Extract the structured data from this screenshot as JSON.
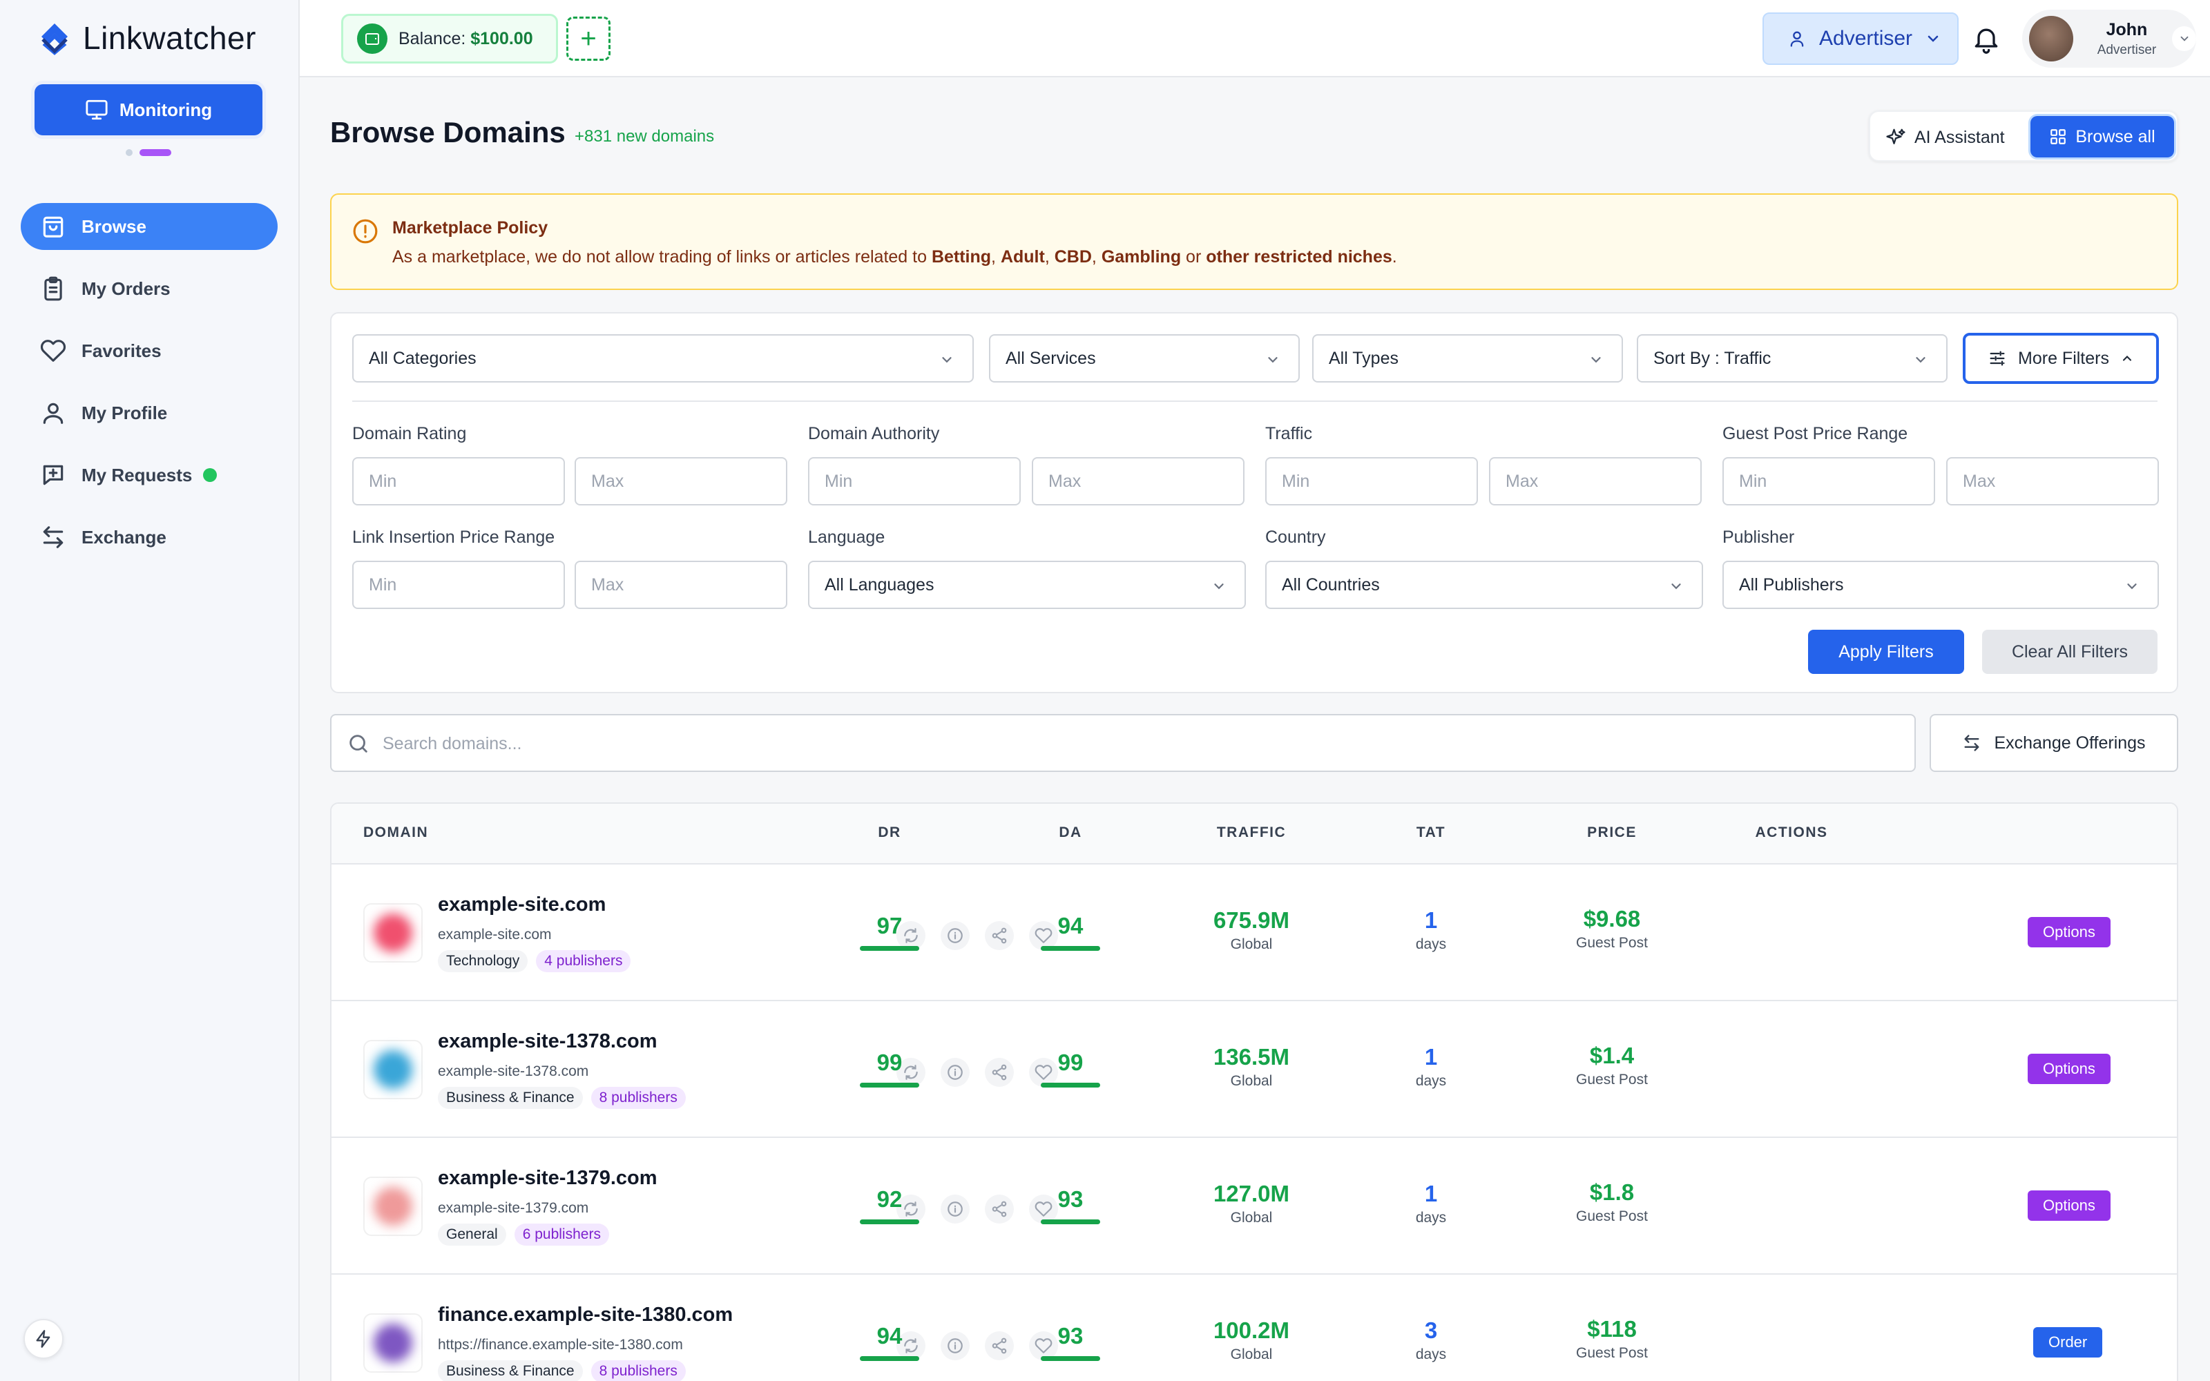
{
  "app": {
    "name": "Linkwatcher"
  },
  "sidebar": {
    "monitoring_label": "Monitoring",
    "items": [
      {
        "label": "Browse",
        "icon": "shopping-bag-icon"
      },
      {
        "label": "My Orders",
        "icon": "clipboard-icon"
      },
      {
        "label": "Favorites",
        "icon": "heart-icon"
      },
      {
        "label": "My Profile",
        "icon": "user-icon"
      },
      {
        "label": "My Requests",
        "icon": "message-plus-icon"
      },
      {
        "label": "Exchange",
        "icon": "arrows-exchange-icon"
      }
    ]
  },
  "topbar": {
    "balance_label": "Balance:",
    "balance_value": "$100.00",
    "add_symbol": "+",
    "role": "Advertiser",
    "user_name": "John",
    "user_role": "Advertiser"
  },
  "page": {
    "title": "Browse Domains",
    "new_domains": "+831 new domains",
    "ai_assistant": "AI Assistant",
    "browse_all": "Browse all"
  },
  "policy": {
    "title": "Marketplace Policy",
    "text_prefix": "As a marketplace, we do not allow trading of links or articles related to ",
    "betting": "Betting",
    "sep1": ", ",
    "adult": "Adult",
    "sep2": ", ",
    "cbd": "CBD",
    "sep3": ", ",
    "gambling": "Gambling",
    "or": " or ",
    "restricted": "other restricted niches",
    "end": "."
  },
  "filters": {
    "categories": "All Categories",
    "services": "All Services",
    "types": "All Types",
    "sort": "Sort By : Traffic",
    "more_filters": "More Filters",
    "domain_rating": "Domain Rating",
    "domain_authority": "Domain Authority",
    "traffic": "Traffic",
    "guest_post_price": "Guest Post Price Range",
    "link_insertion_price": "Link Insertion Price Range",
    "language": "Language",
    "language_value": "All Languages",
    "country": "Country",
    "country_value": "All Countries",
    "publisher": "Publisher",
    "publisher_value": "All Publishers",
    "min_placeholder": "Min",
    "max_placeholder": "Max",
    "apply": "Apply Filters",
    "clear": "Clear All Filters"
  },
  "search": {
    "placeholder": "Search domains...",
    "exchange_offerings": "Exchange Offerings"
  },
  "table": {
    "headers": {
      "domain": "DOMAIN",
      "dr": "DR",
      "da": "DA",
      "traffic": "TRAFFIC",
      "tat": "TAT",
      "price": "PRICE",
      "actions": "ACTIONS"
    },
    "rows": [
      {
        "name": "example-site.com",
        "url": "example-site.com",
        "category": "Technology",
        "publishers": "4 publishers",
        "dr": "97",
        "da": "94",
        "traffic": "675.9M",
        "traffic_scope": "Global",
        "tat": "1",
        "tat_unit": "days",
        "price": "$9.68",
        "price_type": "Guest Post",
        "action": "Options",
        "favicon_color": "#f0506e"
      },
      {
        "name": "example-site-1378.com",
        "url": "example-site-1378.com",
        "category": "Business & Finance",
        "publishers": "8 publishers",
        "dr": "99",
        "da": "99",
        "traffic": "136.5M",
        "traffic_scope": "Global",
        "tat": "1",
        "tat_unit": "days",
        "price": "$1.4",
        "price_type": "Guest Post",
        "action": "Options",
        "favicon_color": "#3aa6d8"
      },
      {
        "name": "example-site-1379.com",
        "url": "example-site-1379.com",
        "category": "General",
        "publishers": "6 publishers",
        "dr": "92",
        "da": "93",
        "traffic": "127.0M",
        "traffic_scope": "Global",
        "tat": "1",
        "tat_unit": "days",
        "price": "$1.8",
        "price_type": "Guest Post",
        "action": "Options",
        "favicon_color": "#ef9a9a"
      },
      {
        "name": "finance.example-site-1380.com",
        "url": "https://finance.example-site-1380.com",
        "category": "Business & Finance",
        "publishers": "8 publishers",
        "dr": "94",
        "da": "93",
        "traffic": "100.2M",
        "traffic_scope": "Global",
        "tat": "3",
        "tat_unit": "days",
        "price": "$118",
        "price_type": "Guest Post",
        "action": "Order",
        "favicon_color": "#7e57c2"
      }
    ]
  },
  "colors": {
    "accent": "#2563eb",
    "success": "#16a34a",
    "purple": "#9333ea",
    "warning_bg": "#fffbeb"
  }
}
